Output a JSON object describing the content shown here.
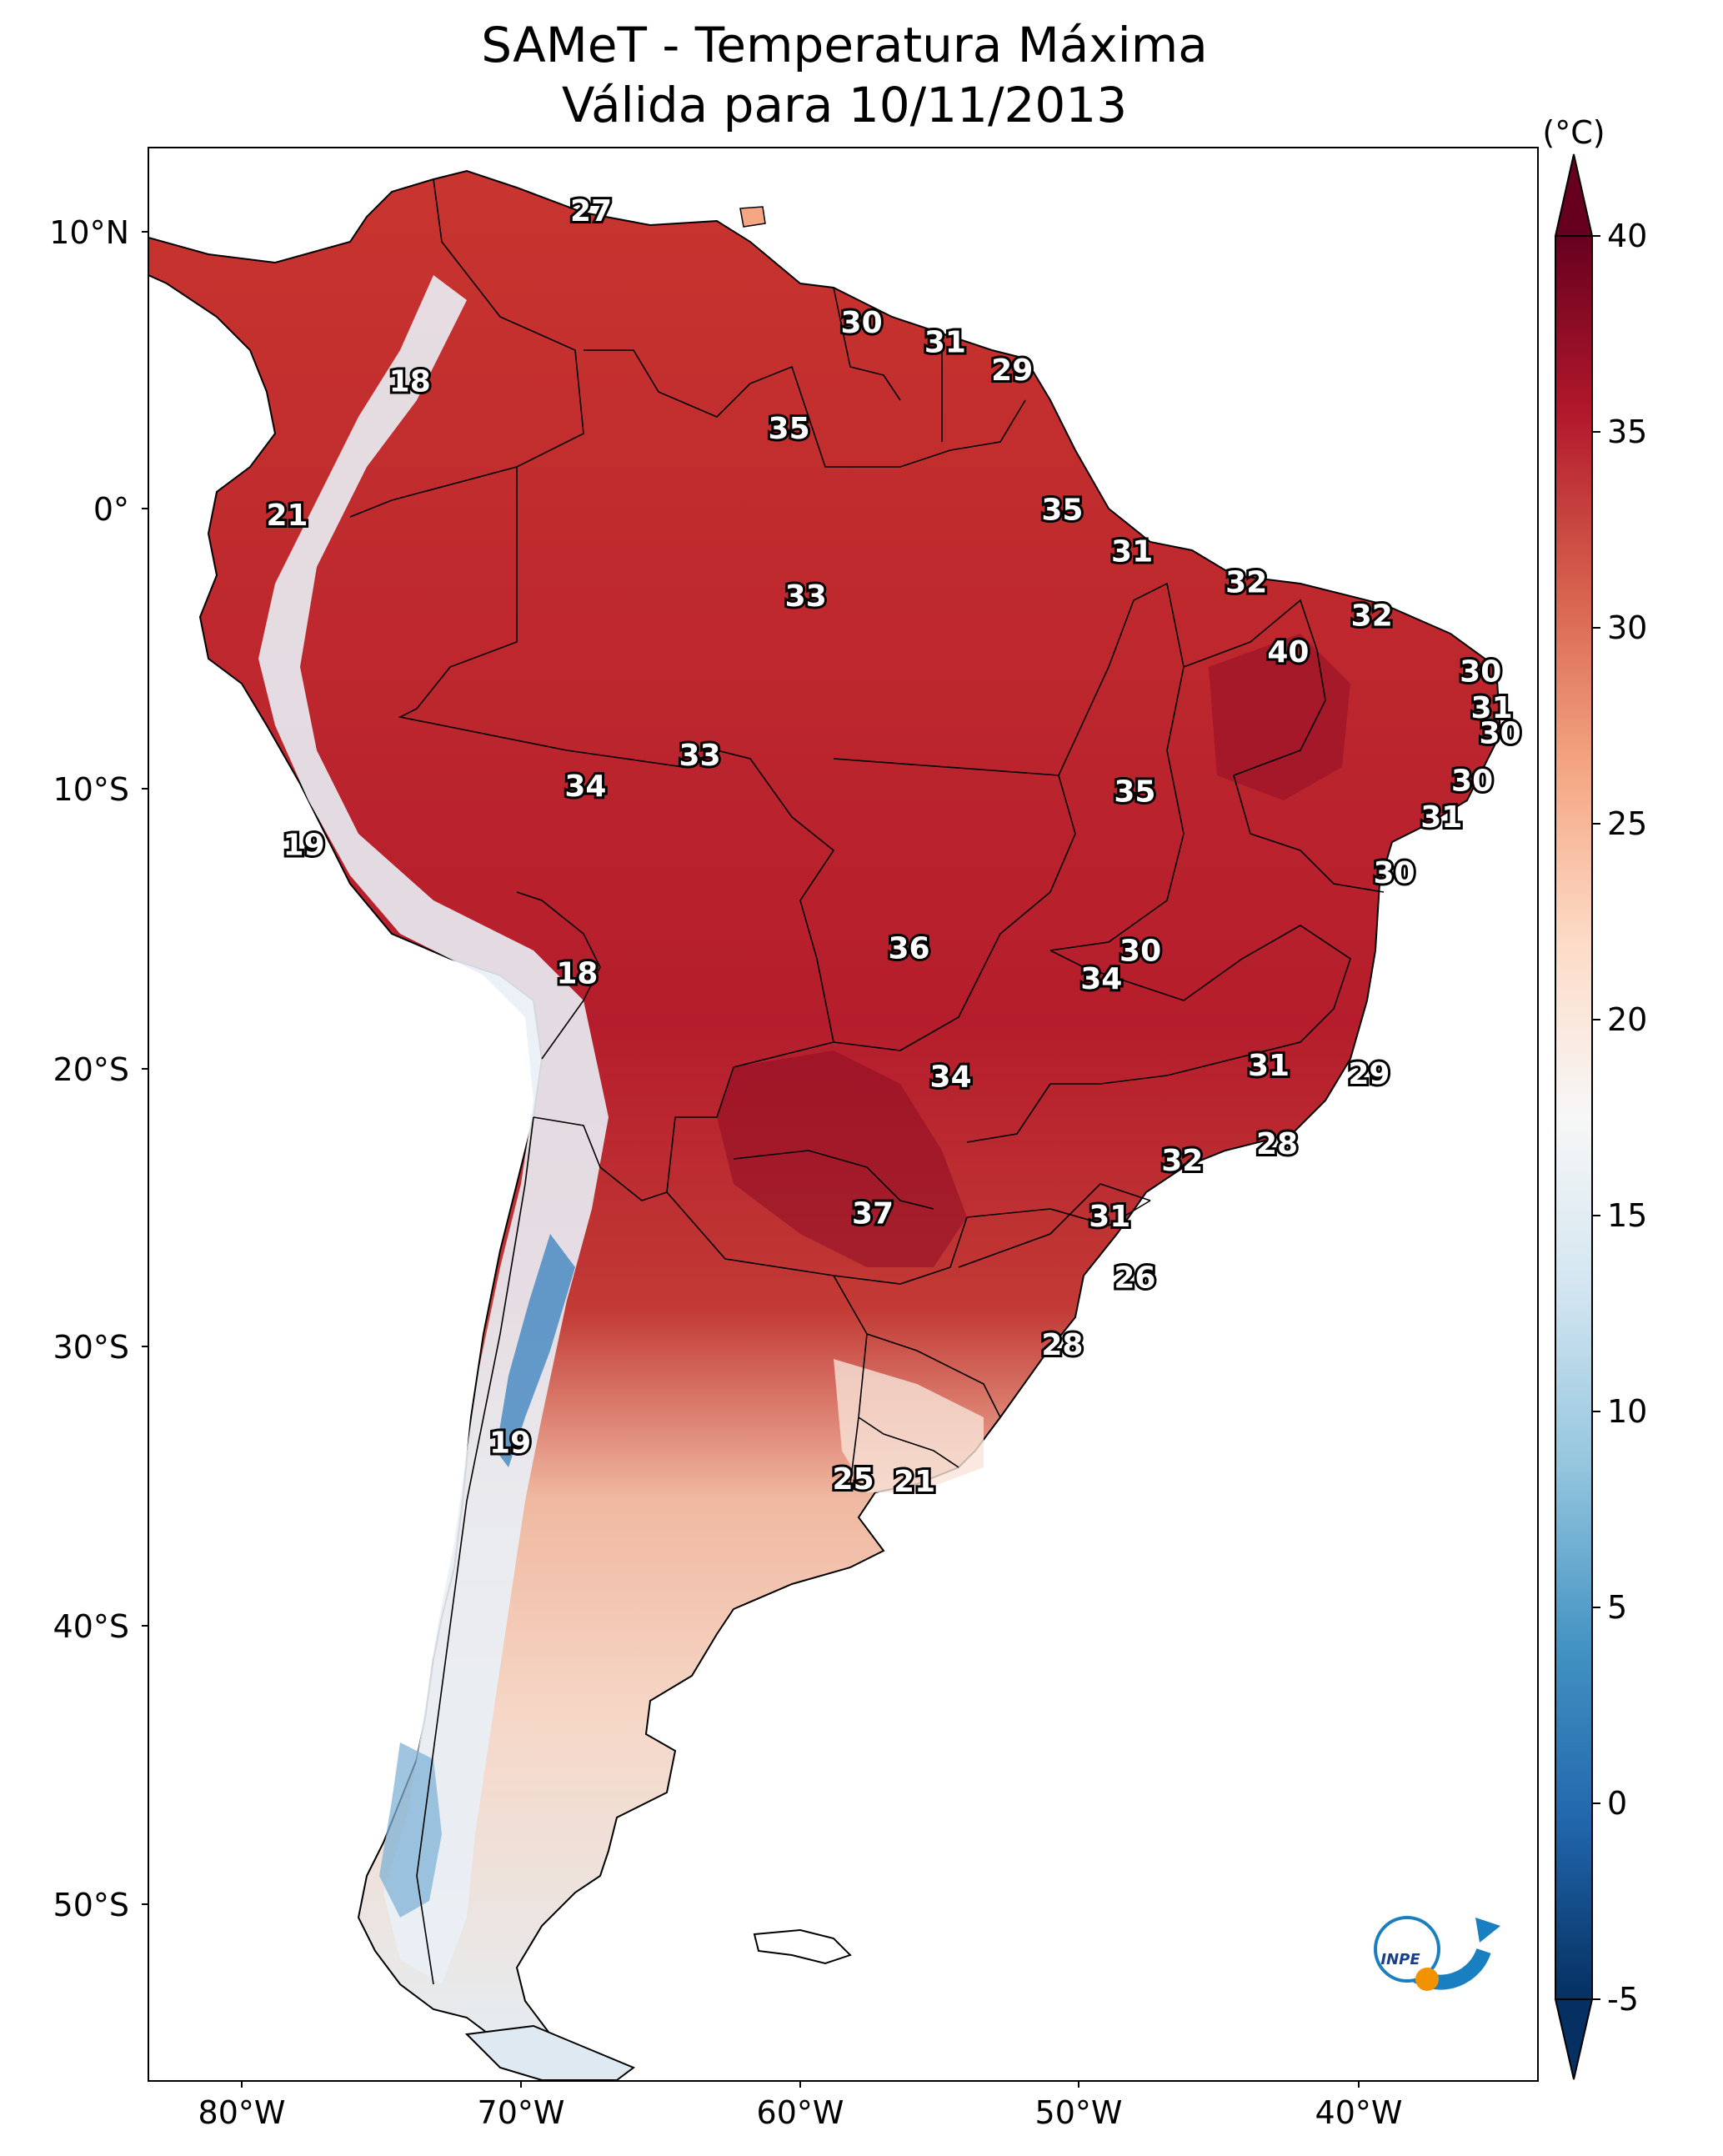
{
  "title": {
    "line1": "SAMeT - Temperatura Máxima",
    "line2": "Válida para 10/11/2013"
  },
  "map": {
    "lat_ticks": [
      "10°N",
      "0°",
      "10°S",
      "20°S",
      "30°S",
      "40°S",
      "50°S"
    ],
    "lon_ticks": [
      "80°W",
      "70°W",
      "60°W",
      "50°W",
      "40°W"
    ],
    "labels": [
      {
        "text": "27",
        "lon": -67.5,
        "lat": 10.6
      },
      {
        "text": "18",
        "lon": -74.0,
        "lat": 4.5
      },
      {
        "text": "30",
        "lon": -57.8,
        "lat": 6.6
      },
      {
        "text": "31",
        "lon": -54.8,
        "lat": 5.9
      },
      {
        "text": "29",
        "lon": -52.4,
        "lat": 4.9
      },
      {
        "text": "35",
        "lon": -60.4,
        "lat": 2.8
      },
      {
        "text": "21",
        "lon": -78.4,
        "lat": -0.3
      },
      {
        "text": "35",
        "lon": -50.6,
        "lat": -0.1
      },
      {
        "text": "31",
        "lon": -48.1,
        "lat": -1.6
      },
      {
        "text": "33",
        "lon": -59.8,
        "lat": -3.2
      },
      {
        "text": "32",
        "lon": -44.0,
        "lat": -2.7
      },
      {
        "text": "32",
        "lon": -39.5,
        "lat": -3.9
      },
      {
        "text": "40",
        "lon": -42.5,
        "lat": -5.2
      },
      {
        "text": "30",
        "lon": -35.6,
        "lat": -5.9
      },
      {
        "text": "31",
        "lon": -35.2,
        "lat": -7.2
      },
      {
        "text": "30",
        "lon": -34.9,
        "lat": -8.1
      },
      {
        "text": "33",
        "lon": -63.6,
        "lat": -8.9
      },
      {
        "text": "34",
        "lon": -67.7,
        "lat": -10.0
      },
      {
        "text": "35",
        "lon": -48.0,
        "lat": -10.2
      },
      {
        "text": "30",
        "lon": -35.9,
        "lat": -9.8
      },
      {
        "text": "31",
        "lon": -37.0,
        "lat": -11.1
      },
      {
        "text": "19",
        "lon": -77.8,
        "lat": -12.1
      },
      {
        "text": "30",
        "lon": -38.7,
        "lat": -13.1
      },
      {
        "text": "36",
        "lon": -56.1,
        "lat": -15.8
      },
      {
        "text": "30",
        "lon": -47.8,
        "lat": -15.9
      },
      {
        "text": "34",
        "lon": -49.2,
        "lat": -16.9
      },
      {
        "text": "18",
        "lon": -68.0,
        "lat": -16.7
      },
      {
        "text": "31",
        "lon": -43.2,
        "lat": -20.0
      },
      {
        "text": "29",
        "lon": -39.6,
        "lat": -20.3
      },
      {
        "text": "34",
        "lon": -54.6,
        "lat": -20.4
      },
      {
        "text": "28",
        "lon": -42.9,
        "lat": -22.8
      },
      {
        "text": "32",
        "lon": -46.3,
        "lat": -23.4
      },
      {
        "text": "37",
        "lon": -57.4,
        "lat": -25.3
      },
      {
        "text": "31",
        "lon": -48.9,
        "lat": -25.4
      },
      {
        "text": "26",
        "lon": -48.0,
        "lat": -27.6
      },
      {
        "text": "28",
        "lon": -50.6,
        "lat": -30.0
      },
      {
        "text": "19",
        "lon": -70.4,
        "lat": -33.5
      },
      {
        "text": "25",
        "lon": -58.1,
        "lat": -34.8
      },
      {
        "text": "21",
        "lon": -55.9,
        "lat": -34.9
      }
    ]
  },
  "colorbar": {
    "unit_label": "(°C)",
    "ticks": [
      "40",
      "35",
      "30",
      "25",
      "20",
      "15",
      "10",
      "5",
      "0",
      "-5"
    ],
    "min": -5,
    "max": 40,
    "colors": [
      "#053061",
      "#2166ac",
      "#4393c3",
      "#92c5de",
      "#d1e5f0",
      "#f7f7f7",
      "#fddbc7",
      "#f4a582",
      "#d6604d",
      "#b2182b",
      "#67001f"
    ]
  },
  "logo": {
    "text": "INPE"
  }
}
